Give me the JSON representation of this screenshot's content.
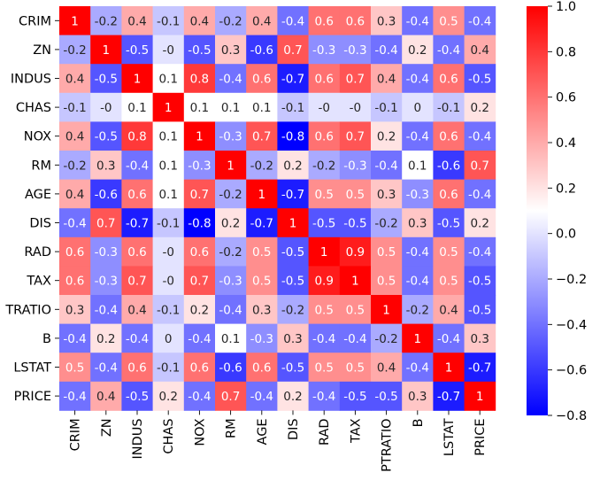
{
  "chart_data": {
    "type": "heatmap",
    "title": "",
    "labels": [
      "CRIM",
      "ZN",
      "INDUS",
      "CHAS",
      "NOX",
      "RM",
      "AGE",
      "DIS",
      "RAD",
      "TAX",
      "PTRATIO",
      "B",
      "LSTAT",
      "PRICE"
    ],
    "label_texts": [
      "CRIM",
      "ZN",
      "INDUS",
      "CHAS",
      "NOX",
      "RM",
      "AGE",
      "DIS",
      "RAD",
      "TAX",
      "PTRATIO",
      "B",
      "LSTAT",
      "PRICE"
    ],
    "row_label_texts": [
      "CRIM",
      "ZN",
      "INDUS",
      "CHAS",
      "NOX",
      "RM",
      "AGE",
      "DIS",
      "RAD",
      "TAX",
      "TRATIO",
      "B",
      "LSTAT",
      "PRICE"
    ],
    "values": [
      [
        1,
        -0.2,
        0.4,
        -0.1,
        0.4,
        -0.2,
        0.4,
        -0.4,
        0.6,
        0.6,
        0.3,
        -0.4,
        0.5,
        -0.4
      ],
      [
        -0.2,
        1,
        -0.5,
        -0.0,
        -0.5,
        0.3,
        -0.6,
        0.7,
        -0.3,
        -0.3,
        -0.4,
        0.2,
        -0.4,
        0.4
      ],
      [
        0.4,
        -0.5,
        1,
        0.1,
        0.8,
        -0.4,
        0.6,
        -0.7,
        0.6,
        0.7,
        0.4,
        -0.4,
        0.6,
        -0.5
      ],
      [
        -0.1,
        -0.0,
        0.1,
        1,
        0.1,
        0.1,
        0.1,
        -0.1,
        -0.0,
        -0.0,
        -0.1,
        0.0,
        -0.1,
        0.2
      ],
      [
        0.4,
        -0.5,
        0.8,
        0.1,
        1,
        -0.3,
        0.7,
        -0.8,
        0.6,
        0.7,
        0.2,
        -0.4,
        0.6,
        -0.4
      ],
      [
        -0.2,
        0.3,
        -0.4,
        0.1,
        -0.3,
        1,
        -0.2,
        0.2,
        -0.2,
        -0.3,
        -0.4,
        0.1,
        -0.6,
        0.7
      ],
      [
        0.4,
        -0.6,
        0.6,
        0.1,
        0.7,
        -0.2,
        1,
        -0.7,
        0.5,
        0.5,
        0.3,
        -0.3,
        0.6,
        -0.4
      ],
      [
        -0.4,
        0.7,
        -0.7,
        -0.1,
        -0.8,
        0.2,
        -0.7,
        1,
        -0.5,
        -0.5,
        -0.2,
        0.3,
        -0.5,
        0.2
      ],
      [
        0.6,
        -0.3,
        0.6,
        -0.0,
        0.6,
        -0.2,
        0.5,
        -0.5,
        1,
        0.9,
        0.5,
        -0.4,
        0.5,
        -0.4
      ],
      [
        0.6,
        -0.3,
        0.7,
        -0.0,
        0.7,
        -0.3,
        0.5,
        -0.5,
        0.9,
        1,
        0.5,
        -0.4,
        0.5,
        -0.5
      ],
      [
        0.3,
        -0.4,
        0.4,
        -0.1,
        0.2,
        -0.4,
        0.3,
        -0.2,
        0.5,
        0.5,
        1,
        -0.2,
        0.4,
        -0.5
      ],
      [
        -0.4,
        0.2,
        -0.4,
        0.0,
        -0.4,
        0.1,
        -0.3,
        0.3,
        -0.4,
        -0.4,
        -0.2,
        1,
        -0.4,
        0.3
      ],
      [
        0.5,
        -0.4,
        0.6,
        -0.1,
        0.6,
        -0.6,
        0.6,
        -0.5,
        0.5,
        0.5,
        0.4,
        -0.4,
        1,
        -0.7
      ],
      [
        -0.4,
        0.4,
        -0.5,
        0.2,
        -0.4,
        0.7,
        -0.4,
        0.2,
        -0.4,
        -0.5,
        -0.5,
        0.3,
        -0.7,
        1
      ]
    ],
    "annotations": [
      [
        "1",
        "-0.2",
        "0.4",
        "-0.1",
        "0.4",
        "-0.2",
        "0.4",
        "-0.4",
        "0.6",
        "0.6",
        "0.3",
        "-0.4",
        "0.5",
        "-0.4"
      ],
      [
        "-0.2",
        "1",
        "-0.5",
        "-0",
        "-0.5",
        "0.3",
        "-0.6",
        "0.7",
        "-0.3",
        "-0.3",
        "-0.4",
        "0.2",
        "-0.4",
        "0.4"
      ],
      [
        "0.4",
        "-0.5",
        "1",
        "0.1",
        "0.8",
        "-0.4",
        "0.6",
        "-0.7",
        "0.6",
        "0.7",
        "0.4",
        "-0.4",
        "0.6",
        "-0.5"
      ],
      [
        "-0.1",
        "-0",
        "0.1",
        "1",
        "0.1",
        "0.1",
        "0.1",
        "-0.1",
        "-0",
        "-0",
        "-0.1",
        "0",
        "-0.1",
        "0.2"
      ],
      [
        "0.4",
        "-0.5",
        "0.8",
        "0.1",
        "1",
        "-0.3",
        "0.7",
        "-0.8",
        "0.6",
        "0.7",
        "0.2",
        "-0.4",
        "0.6",
        "-0.4"
      ],
      [
        "-0.2",
        "0.3",
        "-0.4",
        "0.1",
        "-0.3",
        "1",
        "-0.2",
        "0.2",
        "-0.2",
        "-0.3",
        "-0.4",
        "0.1",
        "-0.6",
        "0.7"
      ],
      [
        "0.4",
        "-0.6",
        "0.6",
        "0.1",
        "0.7",
        "-0.2",
        "1",
        "-0.7",
        "0.5",
        "0.5",
        "0.3",
        "-0.3",
        "0.6",
        "-0.4"
      ],
      [
        "-0.4",
        "0.7",
        "-0.7",
        "-0.1",
        "-0.8",
        "0.2",
        "-0.7",
        "1",
        "-0.5",
        "-0.5",
        "-0.2",
        "0.3",
        "-0.5",
        "0.2"
      ],
      [
        "0.6",
        "-0.3",
        "0.6",
        "-0",
        "0.6",
        "-0.2",
        "0.5",
        "-0.5",
        "1",
        "0.9",
        "0.5",
        "-0.4",
        "0.5",
        "-0.4"
      ],
      [
        "0.6",
        "-0.3",
        "0.7",
        "-0",
        "0.7",
        "-0.3",
        "0.5",
        "-0.5",
        "0.9",
        "1",
        "0.5",
        "-0.4",
        "0.5",
        "-0.5"
      ],
      [
        "0.3",
        "-0.4",
        "0.4",
        "-0.1",
        "0.2",
        "-0.4",
        "0.3",
        "-0.2",
        "0.5",
        "0.5",
        "1",
        "-0.2",
        "0.4",
        "-0.5"
      ],
      [
        "-0.4",
        "0.2",
        "-0.4",
        "0",
        "-0.4",
        "0.1",
        "-0.3",
        "0.3",
        "-0.4",
        "-0.4",
        "-0.2",
        "1",
        "-0.4",
        "0.3"
      ],
      [
        "0.5",
        "-0.4",
        "0.6",
        "-0.1",
        "0.6",
        "-0.6",
        "0.6",
        "-0.5",
        "0.5",
        "0.5",
        "0.4",
        "-0.4",
        "1",
        "-0.7"
      ],
      [
        "-0.4",
        "0.4",
        "-0.5",
        "0.2",
        "-0.4",
        "0.7",
        "-0.4",
        "0.2",
        "-0.4",
        "-0.5",
        "-0.5",
        "0.3",
        "-0.7",
        "1"
      ]
    ],
    "colormap": "bwr",
    "vmin": -0.8,
    "vmax": 1.0,
    "colorbar_ticks": [
      1.0,
      0.8,
      0.6,
      0.4,
      0.2,
      0.0,
      -0.2,
      -0.4,
      -0.6,
      -0.8
    ],
    "colorbar_tick_labels": [
      "1.0",
      "0.8",
      "0.6",
      "0.4",
      "0.2",
      "0.0",
      "−0.2",
      "−0.4",
      "−0.6",
      "−0.8"
    ],
    "colors": {
      "low": "#0000ff",
      "mid": "#ffffff",
      "high": "#ff0000"
    }
  }
}
